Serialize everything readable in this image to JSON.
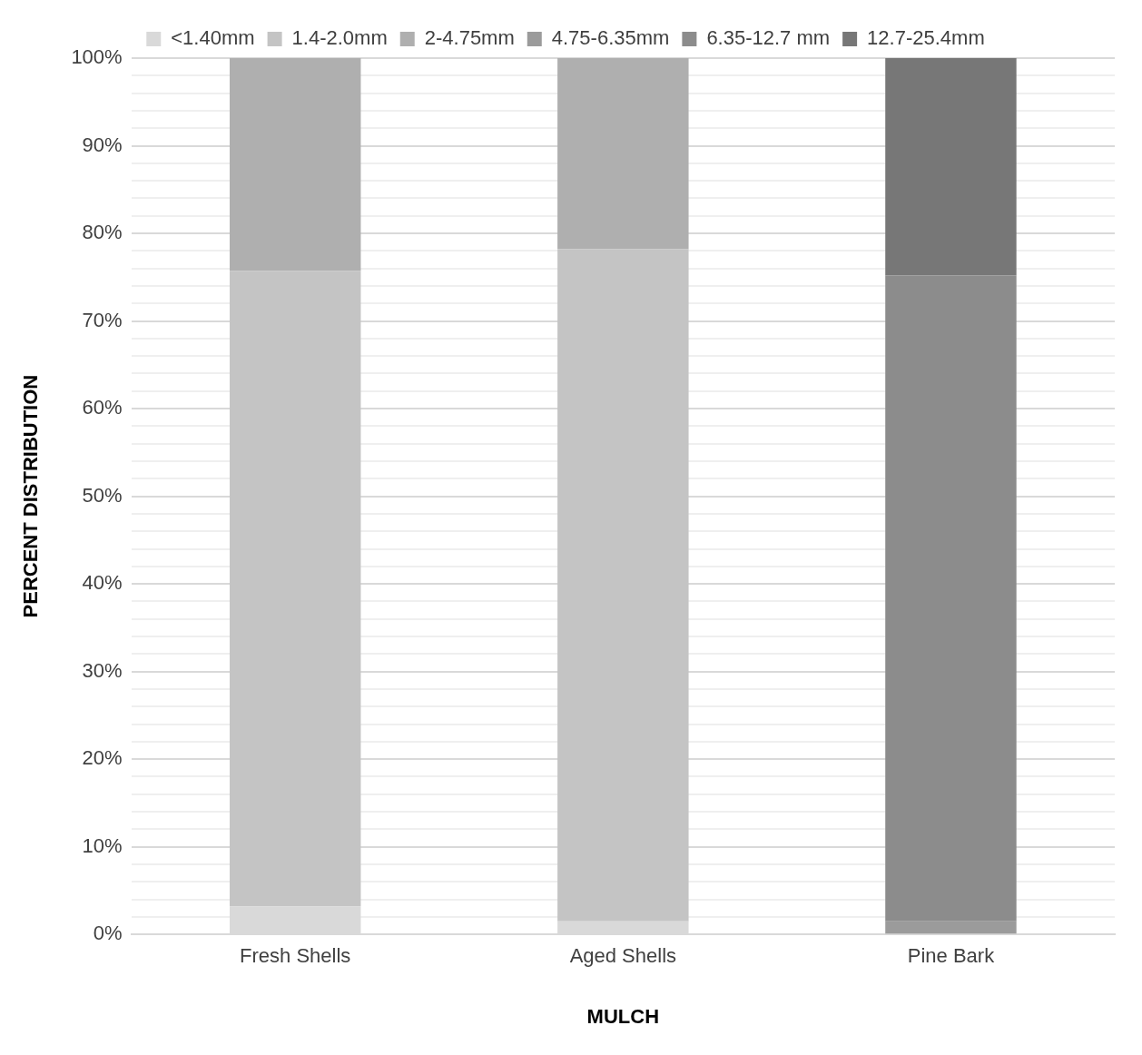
{
  "chart_data": {
    "type": "bar",
    "stacked": true,
    "xlabel": "MULCH",
    "ylabel": "PERCENT DISTRIBUTION",
    "categories": [
      "Fresh Shells",
      "Aged Shells",
      "Pine Bark"
    ],
    "series": [
      {
        "name": "<1.40mm",
        "color": "#d9d9d9",
        "values": [
          3.2,
          1.5,
          0
        ]
      },
      {
        "name": "1.4-2.0mm",
        "color": "#c4c4c4",
        "values": [
          72.5,
          76.7,
          0
        ]
      },
      {
        "name": "2-4.75mm",
        "color": "#afafaf",
        "values": [
          24.3,
          21.8,
          0
        ]
      },
      {
        "name": "4.75-6.35mm",
        "color": "#9b9b9b",
        "values": [
          0,
          0,
          1.5
        ]
      },
      {
        "name": "6.35-12.7 mm",
        "color": "#8c8c8c",
        "values": [
          0,
          0,
          73.7
        ]
      },
      {
        "name": "12.7-25.4mm",
        "color": "#777777",
        "values": [
          0,
          0,
          24.8
        ]
      }
    ],
    "ylim": [
      0,
      100
    ],
    "yticks": [
      {
        "value": 0,
        "label": "0%"
      },
      {
        "value": 2,
        "label": null
      },
      {
        "value": 4,
        "label": null
      },
      {
        "value": 6,
        "label": null
      },
      {
        "value": 8,
        "label": null
      },
      {
        "value": 10,
        "label": "10%"
      },
      {
        "value": 12,
        "label": null
      },
      {
        "value": 14,
        "label": null
      },
      {
        "value": 16,
        "label": null
      },
      {
        "value": 18,
        "label": null
      },
      {
        "value": 20,
        "label": "20%"
      },
      {
        "value": 22,
        "label": null
      },
      {
        "value": 24,
        "label": null
      },
      {
        "value": 26,
        "label": null
      },
      {
        "value": 28,
        "label": null
      },
      {
        "value": 30,
        "label": "30%"
      },
      {
        "value": 32,
        "label": null
      },
      {
        "value": 34,
        "label": null
      },
      {
        "value": 36,
        "label": null
      },
      {
        "value": 38,
        "label": null
      },
      {
        "value": 40,
        "label": "40%"
      },
      {
        "value": 42,
        "label": null
      },
      {
        "value": 44,
        "label": null
      },
      {
        "value": 46,
        "label": null
      },
      {
        "value": 48,
        "label": null
      },
      {
        "value": 50,
        "label": "50%"
      },
      {
        "value": 52,
        "label": null
      },
      {
        "value": 54,
        "label": null
      },
      {
        "value": 56,
        "label": null
      },
      {
        "value": 58,
        "label": null
      },
      {
        "value": 60,
        "label": "60%"
      },
      {
        "value": 62,
        "label": null
      },
      {
        "value": 64,
        "label": null
      },
      {
        "value": 66,
        "label": null
      },
      {
        "value": 68,
        "label": null
      },
      {
        "value": 70,
        "label": "70%"
      },
      {
        "value": 72,
        "label": null
      },
      {
        "value": 74,
        "label": null
      },
      {
        "value": 76,
        "label": null
      },
      {
        "value": 78,
        "label": null
      },
      {
        "value": 80,
        "label": "80%"
      },
      {
        "value": 82,
        "label": null
      },
      {
        "value": 84,
        "label": null
      },
      {
        "value": 86,
        "label": null
      },
      {
        "value": 88,
        "label": null
      },
      {
        "value": 90,
        "label": "90%"
      },
      {
        "value": 92,
        "label": null
      },
      {
        "value": 94,
        "label": null
      },
      {
        "value": 96,
        "label": null
      },
      {
        "value": 98,
        "label": null
      },
      {
        "value": 100,
        "label": "100%"
      }
    ],
    "grid": "y",
    "legend": "top"
  }
}
